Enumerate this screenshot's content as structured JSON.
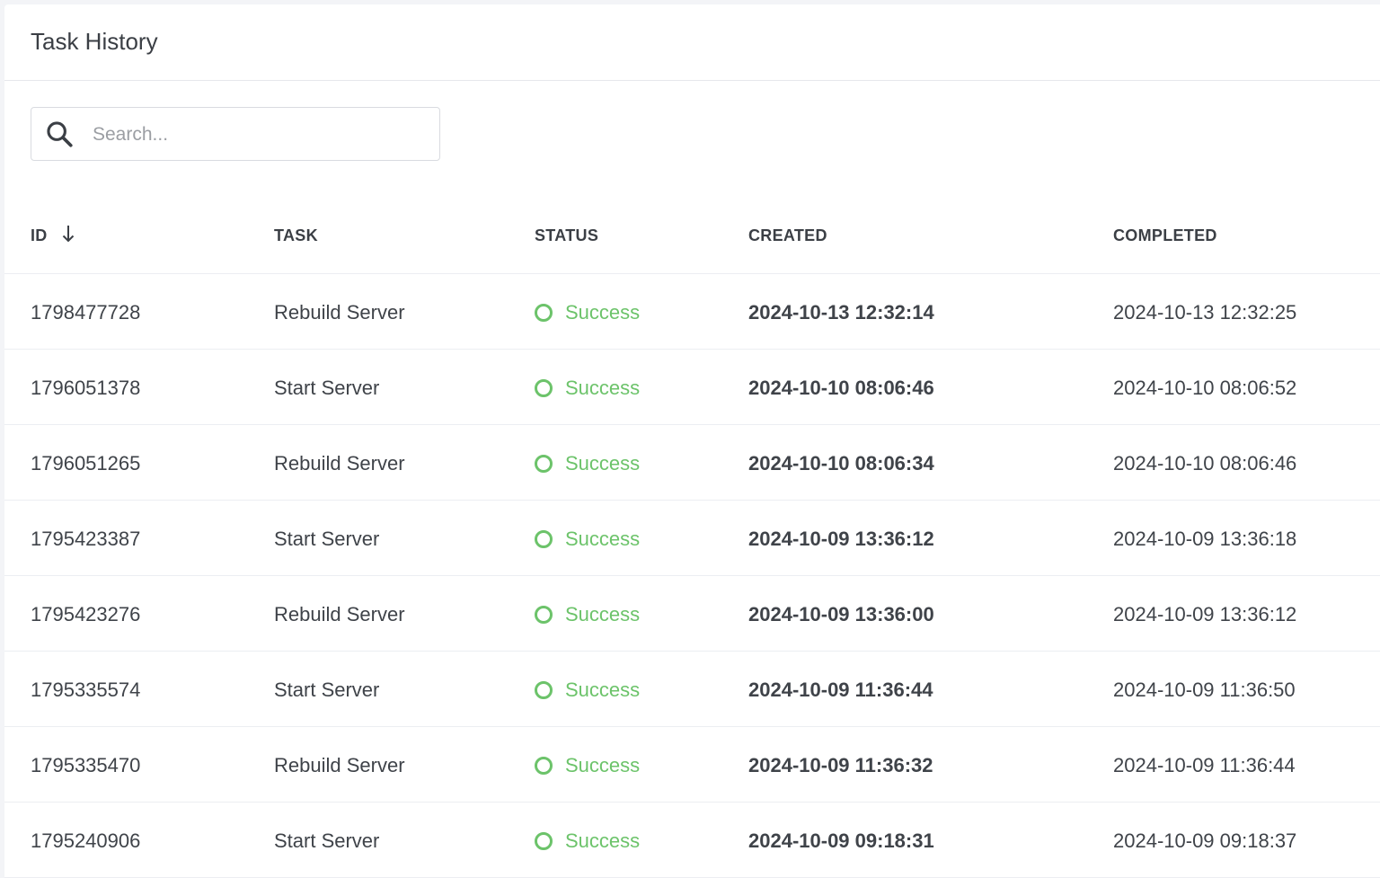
{
  "header": {
    "title": "Task History"
  },
  "search": {
    "placeholder": "Search...",
    "value": ""
  },
  "table": {
    "columns": [
      "ID",
      "TASK",
      "STATUS",
      "CREATED",
      "COMPLETED"
    ],
    "sort": {
      "column": "ID",
      "direction": "descending"
    },
    "status_color": "#6cc36a",
    "rows": [
      {
        "id": "1798477728",
        "task": "Rebuild Server",
        "status": "Success",
        "created": "2024-10-13 12:32:14",
        "completed": "2024-10-13 12:32:25"
      },
      {
        "id": "1796051378",
        "task": "Start Server",
        "status": "Success",
        "created": "2024-10-10 08:06:46",
        "completed": "2024-10-10 08:06:52"
      },
      {
        "id": "1796051265",
        "task": "Rebuild Server",
        "status": "Success",
        "created": "2024-10-10 08:06:34",
        "completed": "2024-10-10 08:06:46"
      },
      {
        "id": "1795423387",
        "task": "Start Server",
        "status": "Success",
        "created": "2024-10-09 13:36:12",
        "completed": "2024-10-09 13:36:18"
      },
      {
        "id": "1795423276",
        "task": "Rebuild Server",
        "status": "Success",
        "created": "2024-10-09 13:36:00",
        "completed": "2024-10-09 13:36:12"
      },
      {
        "id": "1795335574",
        "task": "Start Server",
        "status": "Success",
        "created": "2024-10-09 11:36:44",
        "completed": "2024-10-09 11:36:50"
      },
      {
        "id": "1795335470",
        "task": "Rebuild Server",
        "status": "Success",
        "created": "2024-10-09 11:36:32",
        "completed": "2024-10-09 11:36:44"
      },
      {
        "id": "1795240906",
        "task": "Start Server",
        "status": "Success",
        "created": "2024-10-09 09:18:31",
        "completed": "2024-10-09 09:18:37"
      }
    ]
  }
}
